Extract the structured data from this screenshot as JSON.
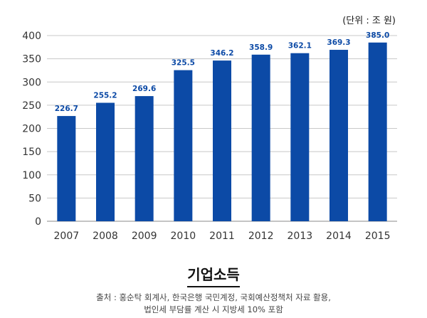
{
  "chart_data": {
    "type": "bar",
    "unit_label": "(단위 : 조 원)",
    "categories": [
      "2007",
      "2008",
      "2009",
      "2010",
      "2011",
      "2012",
      "2013",
      "2014",
      "2015"
    ],
    "values": [
      226.7,
      255.2,
      269.6,
      325.5,
      346.2,
      358.9,
      362.1,
      369.3,
      385.0
    ],
    "value_labels": [
      "226.7",
      "255.2",
      "269.6",
      "325.5",
      "346.2",
      "358.9",
      "362.1",
      "369.3",
      "385.0"
    ],
    "ylim": [
      0,
      400
    ],
    "yticks": [
      "0",
      "50",
      "100",
      "150",
      "200",
      "250",
      "300",
      "350",
      "400"
    ],
    "grid": true,
    "bar_color": "#0c4aa6",
    "label_color": "#0c4aa6"
  },
  "caption": {
    "title": "기업소득",
    "source_line1": "출처 : 홍순탁 회계사, 한국은행 국민계정, 국회예산정책처 자료 활용,",
    "source_line2": "법인세 부담률 계산 시 지방세 10% 포함"
  }
}
